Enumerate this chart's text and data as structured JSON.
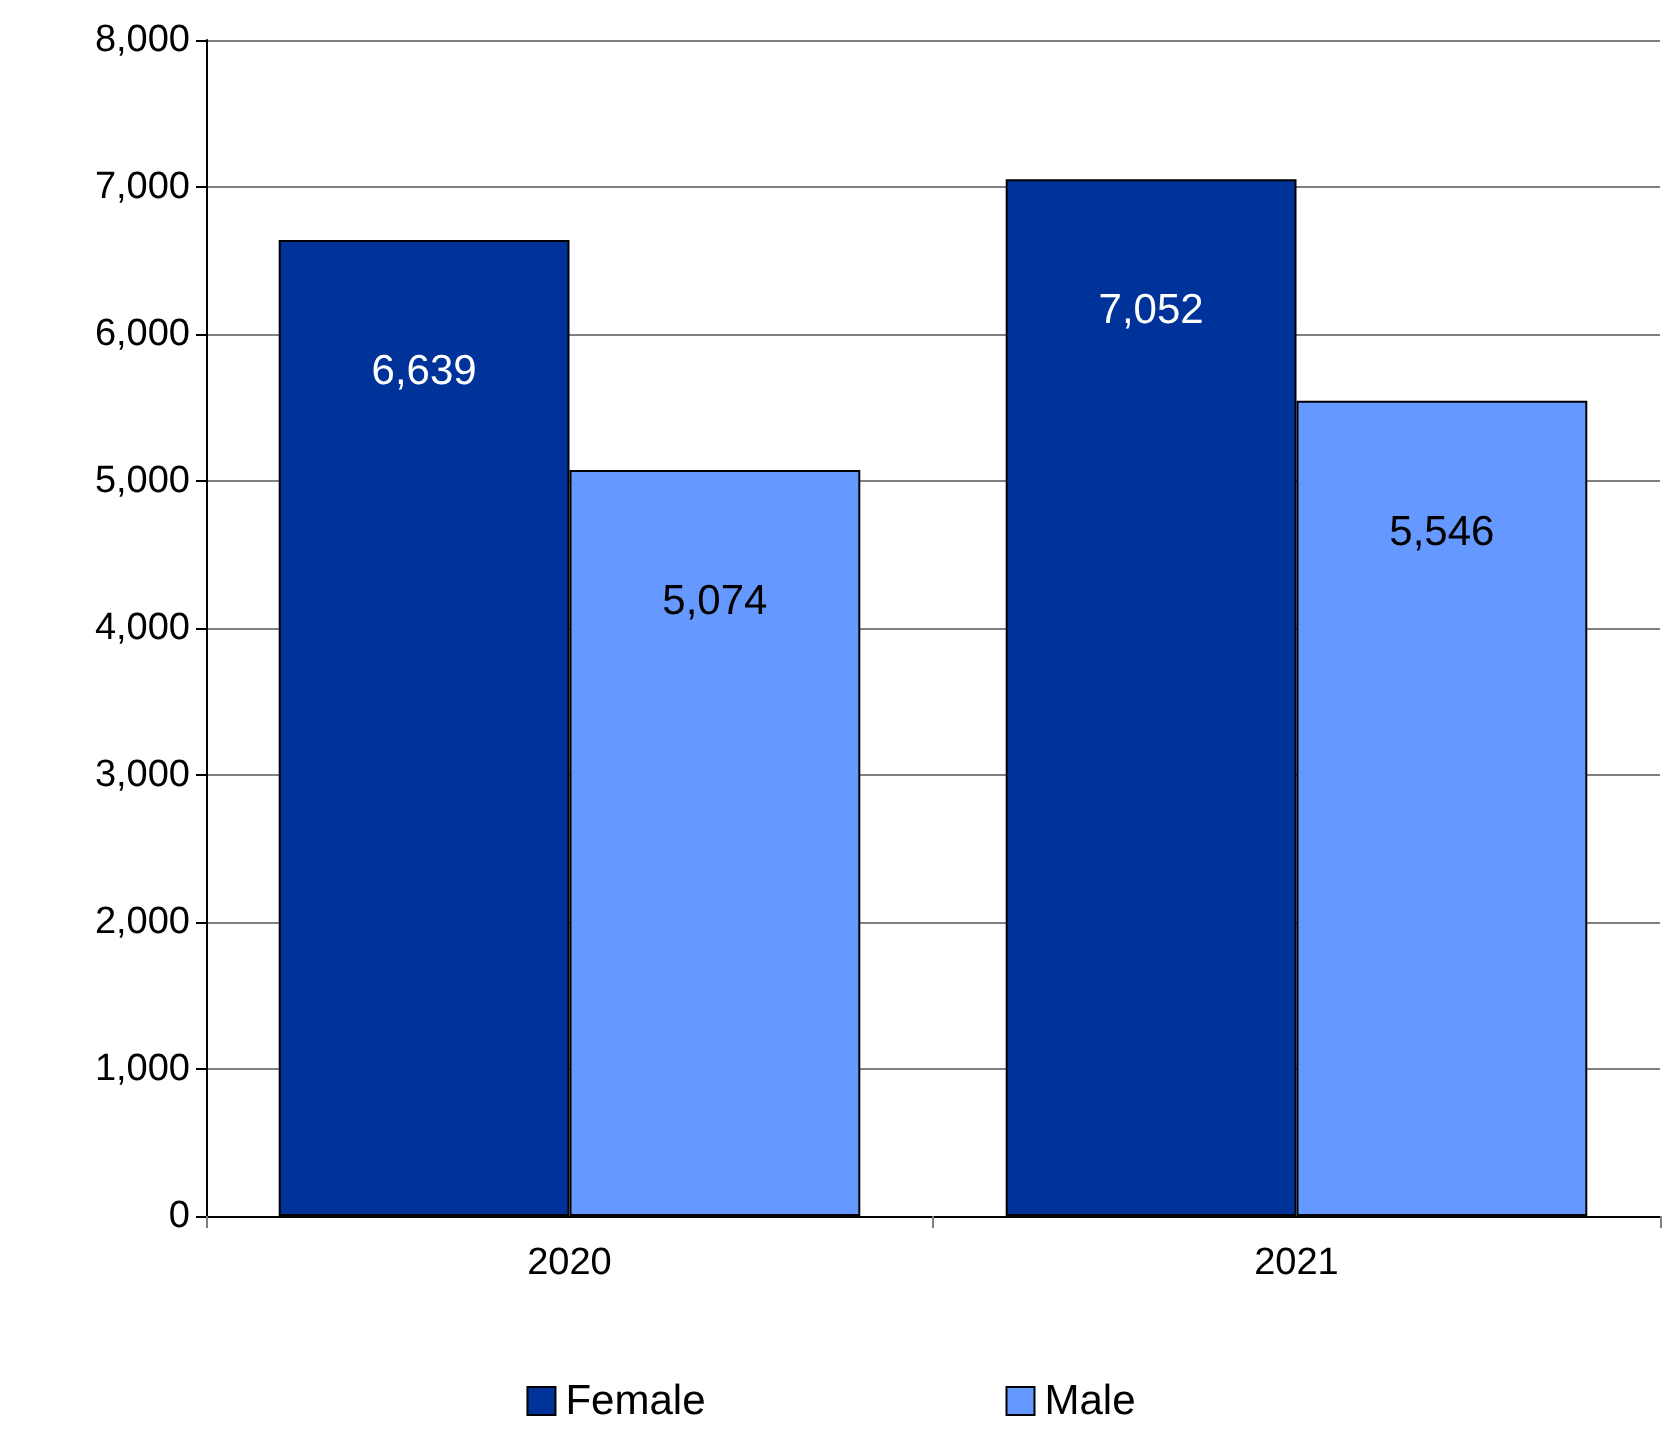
{
  "chart_data": {
    "type": "bar",
    "categories": [
      "2020",
      "2021"
    ],
    "series": [
      {
        "name": "Female",
        "color": "#003399",
        "values": [
          6639,
          7052
        ],
        "value_labels": [
          "6,639",
          "7,052"
        ]
      },
      {
        "name": "Male",
        "color": "#6699ff",
        "values": [
          5074,
          5546
        ],
        "value_labels": [
          "5,074",
          "5,546"
        ]
      }
    ],
    "ylim": [
      0,
      8000
    ],
    "yticks": [
      {
        "value": 0,
        "label": "0"
      },
      {
        "value": 1000,
        "label": "1,000"
      },
      {
        "value": 2000,
        "label": "2,000"
      },
      {
        "value": 3000,
        "label": "3,000"
      },
      {
        "value": 4000,
        "label": "4,000"
      },
      {
        "value": 5000,
        "label": "5,000"
      },
      {
        "value": 6000,
        "label": "6,000"
      },
      {
        "value": 7000,
        "label": "7,000"
      },
      {
        "value": 8000,
        "label": "8,000"
      }
    ],
    "grid": "y",
    "legend": "bottom"
  }
}
